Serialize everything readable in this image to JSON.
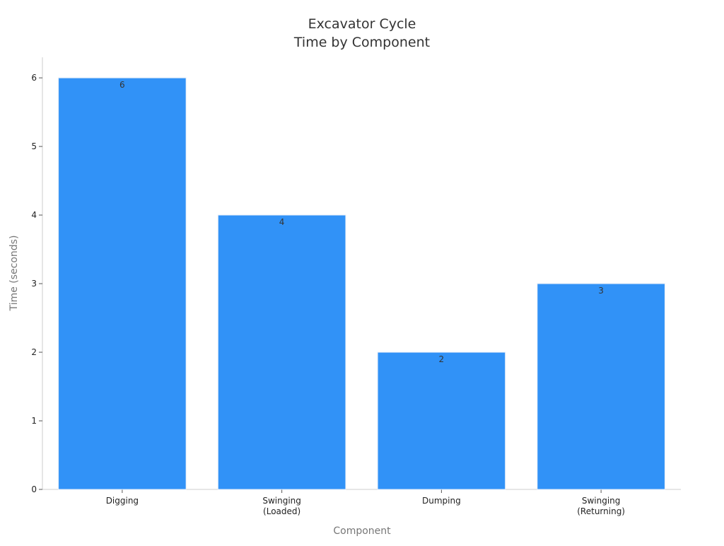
{
  "chart_data": {
    "type": "bar",
    "title": [
      "Excavator Cycle",
      "Time by Component"
    ],
    "xlabel": "Component",
    "ylabel": "Time (seconds)",
    "categories": [
      [
        "Digging"
      ],
      [
        "Swinging",
        "(Loaded)"
      ],
      [
        "Dumping"
      ],
      [
        "Swinging",
        "(Returning)"
      ]
    ],
    "values": [
      6,
      4,
      2,
      3
    ],
    "data_labels": [
      "6",
      "4",
      "2",
      "3"
    ],
    "yticks": [
      0,
      1,
      2,
      3,
      4,
      5,
      6
    ],
    "ylim": [
      0,
      6.3
    ],
    "bar_color": "#3192f7",
    "axis_color": "#cccccc",
    "grid": false,
    "legend": "none"
  }
}
